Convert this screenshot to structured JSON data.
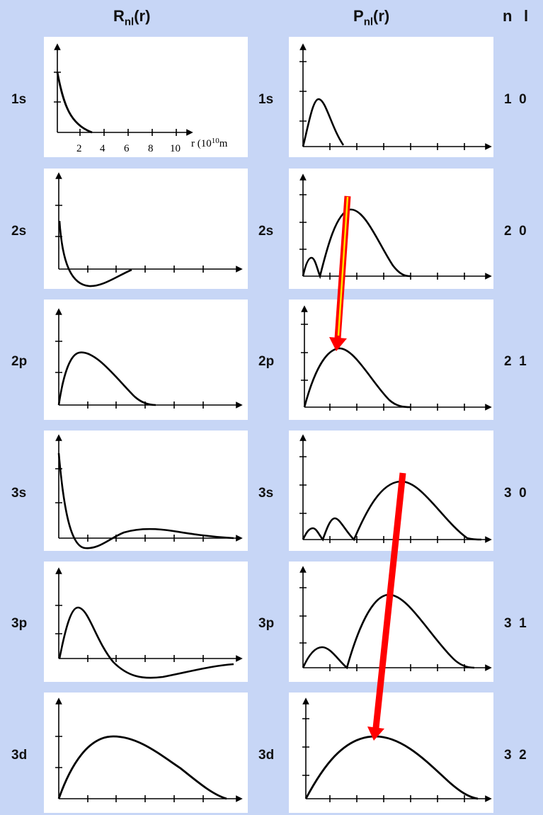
{
  "headers": {
    "r_main": "R",
    "r_sub": "nl",
    "r_tail": "(r)",
    "p_main": "P",
    "p_sub": "nl",
    "p_tail": "(r)",
    "n": "n",
    "l": "l"
  },
  "axis_labels": {
    "ticks": [
      "2",
      "4",
      "6",
      "8",
      "10"
    ],
    "r_label": "r (10",
    "r_exp": "10",
    "r_unit": "m"
  },
  "rows": [
    {
      "orbital": "1s",
      "n": "1",
      "l": "0"
    },
    {
      "orbital": "2s",
      "n": "2",
      "l": "0"
    },
    {
      "orbital": "2p",
      "n": "2",
      "l": "1"
    },
    {
      "orbital": "3s",
      "n": "3",
      "l": "0"
    },
    {
      "orbital": "3p",
      "n": "3",
      "l": "1"
    },
    {
      "orbital": "3d",
      "n": "3",
      "l": "2"
    }
  ],
  "colors": {
    "background": "#c7d6f6",
    "panel": "#ffffff",
    "curve": "#000000",
    "arrow": "#ff0000",
    "arrow_core": "#ffe600"
  }
}
